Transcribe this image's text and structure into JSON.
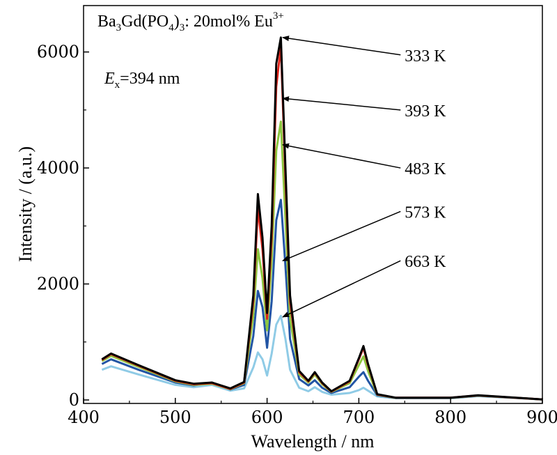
{
  "chart_data": {
    "type": "line",
    "title": {
      "base": "Ba",
      "sub1": "3",
      "mid1": "Gd(PO",
      "sub2": "4",
      "mid2": ")",
      "sub3": "3",
      "mid3": ": 20mol% Eu",
      "sup": "3+"
    },
    "excitation": {
      "var": "E",
      "sub": "x",
      "rest": "=394 nm"
    },
    "xlabel": "Wavelength / nm",
    "ylabel": "Intensity / (a.u.)",
    "xlim": [
      400,
      900
    ],
    "ylim": [
      -60,
      6800
    ],
    "xticks": [
      "400",
      "500",
      "600",
      "700",
      "800",
      "900"
    ],
    "yticks": [
      "0",
      "2000",
      "4000",
      "6000"
    ],
    "grid": false,
    "series": [
      {
        "name": "333 K",
        "color": "#000000",
        "x": [
          420,
          430,
          460,
          500,
          520,
          540,
          560,
          575,
          585,
          590,
          595,
          600,
          605,
          610,
          615,
          620,
          625,
          635,
          645,
          652,
          660,
          670,
          690,
          700,
          705,
          710,
          720,
          740,
          800,
          830,
          900
        ],
        "values": [
          700,
          800,
          600,
          340,
          280,
          300,
          200,
          310,
          1800,
          3550,
          2800,
          1500,
          3000,
          5800,
          6250,
          4000,
          1800,
          500,
          330,
          480,
          300,
          150,
          330,
          720,
          930,
          620,
          100,
          40,
          40,
          80,
          10
        ]
      },
      {
        "name": "393 K",
        "color": "#e0261c",
        "x": [
          420,
          430,
          460,
          500,
          520,
          540,
          560,
          575,
          585,
          590,
          595,
          600,
          605,
          610,
          615,
          620,
          625,
          635,
          645,
          652,
          660,
          670,
          690,
          700,
          705,
          710,
          720,
          740,
          800,
          830,
          900
        ],
        "values": [
          690,
          790,
          590,
          330,
          270,
          290,
          190,
          300,
          1700,
          3300,
          2600,
          1400,
          2800,
          5400,
          6100,
          3800,
          1700,
          480,
          320,
          470,
          290,
          145,
          320,
          700,
          900,
          600,
          95,
          38,
          38,
          78,
          10
        ]
      },
      {
        "name": "483 K",
        "color": "#8cc63f",
        "x": [
          420,
          430,
          460,
          500,
          520,
          540,
          560,
          575,
          585,
          590,
          595,
          600,
          605,
          610,
          615,
          620,
          625,
          635,
          645,
          652,
          660,
          670,
          690,
          700,
          705,
          710,
          720,
          740,
          800,
          830,
          900
        ],
        "values": [
          670,
          760,
          570,
          320,
          260,
          280,
          185,
          290,
          1450,
          2600,
          2100,
          1200,
          2400,
          4300,
          4800,
          3100,
          1400,
          440,
          300,
          440,
          270,
          140,
          290,
          600,
          750,
          500,
          90,
          36,
          36,
          75,
          10
        ]
      },
      {
        "name": "573 K",
        "color": "#2255a4",
        "x": [
          420,
          430,
          460,
          500,
          520,
          540,
          560,
          575,
          585,
          590,
          595,
          600,
          605,
          610,
          615,
          620,
          625,
          635,
          645,
          652,
          660,
          670,
          690,
          700,
          705,
          710,
          720,
          740,
          800,
          830,
          900
        ],
        "values": [
          620,
          700,
          520,
          300,
          250,
          300,
          180,
          260,
          1100,
          1880,
          1600,
          900,
          1700,
          3100,
          3450,
          2300,
          1050,
          360,
          250,
          340,
          210,
          120,
          220,
          400,
          480,
          330,
          80,
          34,
          34,
          72,
          10
        ]
      },
      {
        "name": "663 K",
        "color": "#8fcbe6",
        "x": [
          420,
          430,
          460,
          500,
          520,
          540,
          560,
          575,
          585,
          590,
          595,
          600,
          605,
          610,
          615,
          620,
          625,
          635,
          645,
          652,
          660,
          670,
          690,
          700,
          705,
          710,
          720,
          740,
          800,
          830,
          900
        ],
        "values": [
          520,
          580,
          440,
          260,
          220,
          260,
          160,
          200,
          560,
          820,
          700,
          420,
          800,
          1300,
          1450,
          1050,
          520,
          210,
          150,
          220,
          140,
          90,
          120,
          170,
          210,
          160,
          60,
          30,
          30,
          65,
          10
        ]
      }
    ],
    "annotations": [
      {
        "text": "333 K",
        "target_x": 617,
        "target_y": 6250,
        "label_x": 750,
        "label_y": 5950
      },
      {
        "text": "393 K",
        "target_x": 617,
        "target_y": 5200,
        "label_x": 750,
        "label_y": 5000
      },
      {
        "text": "483 K",
        "target_x": 617,
        "target_y": 4400,
        "label_x": 750,
        "label_y": 4000
      },
      {
        "text": "573 K",
        "target_x": 617,
        "target_y": 2400,
        "label_x": 750,
        "label_y": 3250
      },
      {
        "text": "663 K",
        "target_x": 617,
        "target_y": 1430,
        "label_x": 750,
        "label_y": 2400
      }
    ]
  }
}
